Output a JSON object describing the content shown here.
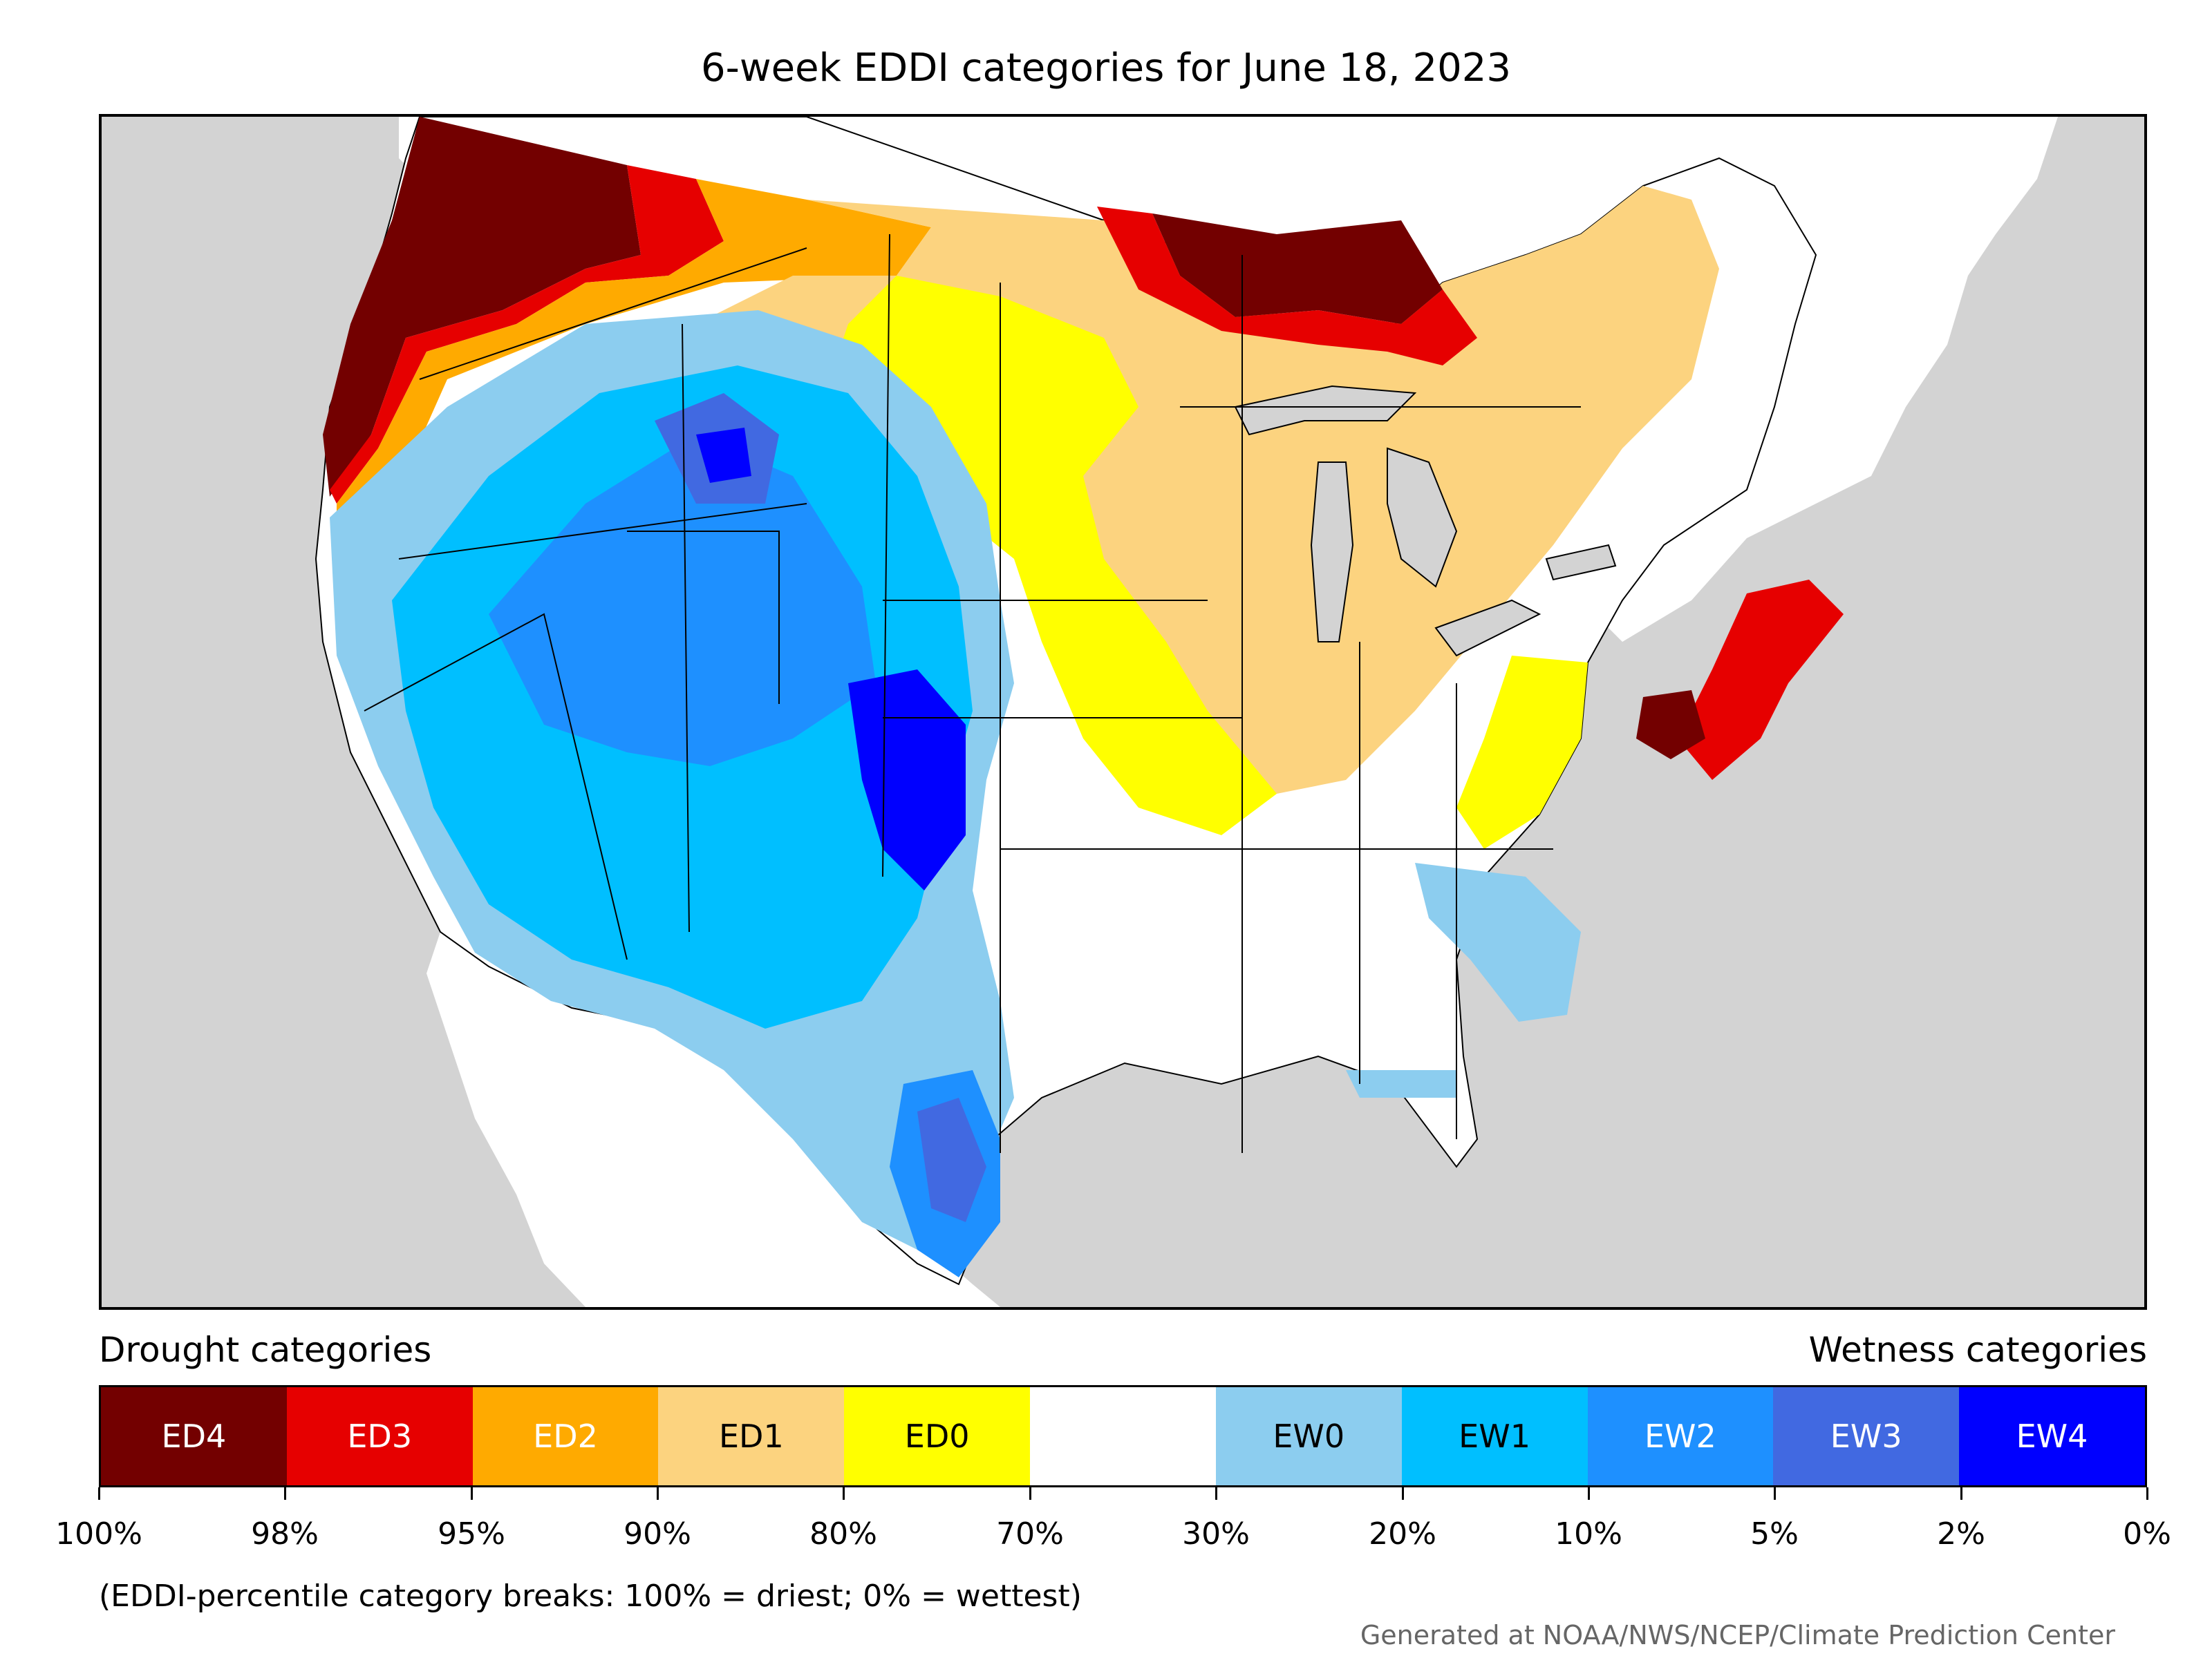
{
  "title": "6-week EDDI categories for June 18, 2023",
  "legend": {
    "drought_label": "Drought categories",
    "wetness_label": "Wetness categories",
    "categories": [
      {
        "label": "ED4",
        "color": "#730000",
        "text_color": "#ffffff"
      },
      {
        "label": "ED3",
        "color": "#e60000",
        "text_color": "#ffffff"
      },
      {
        "label": "ED2",
        "color": "#ffaa00",
        "text_color": "#ffffff"
      },
      {
        "label": "ED1",
        "color": "#fcd37f",
        "text_color": "#000000"
      },
      {
        "label": "ED0",
        "color": "#ffff00",
        "text_color": "#000000"
      },
      {
        "label": "",
        "color": "#ffffff",
        "text_color": "#000000"
      },
      {
        "label": "EW0",
        "color": "#8ccdef",
        "text_color": "#000000"
      },
      {
        "label": "EW1",
        "color": "#00bfff",
        "text_color": "#000000"
      },
      {
        "label": "EW2",
        "color": "#1e90ff",
        "text_color": "#ffffff"
      },
      {
        "label": "EW3",
        "color": "#4169e1",
        "text_color": "#ffffff"
      },
      {
        "label": "EW4",
        "color": "#0000ff",
        "text_color": "#ffffff"
      }
    ],
    "tick_labels": [
      "100%",
      "98%",
      "95%",
      "90%",
      "80%",
      "70%",
      "30%",
      "20%",
      "10%",
      "5%",
      "2%",
      "0%"
    ]
  },
  "note": "(EDDI-percentile category breaks: 100% = driest; 0% = wettest)",
  "credit": "Generated at NOAA/NWS/NCEP/Climate Prediction Center",
  "map": {
    "ocean_color": "#d3d3d3",
    "land_color": "#ffffff",
    "border_color": "#000000"
  }
}
